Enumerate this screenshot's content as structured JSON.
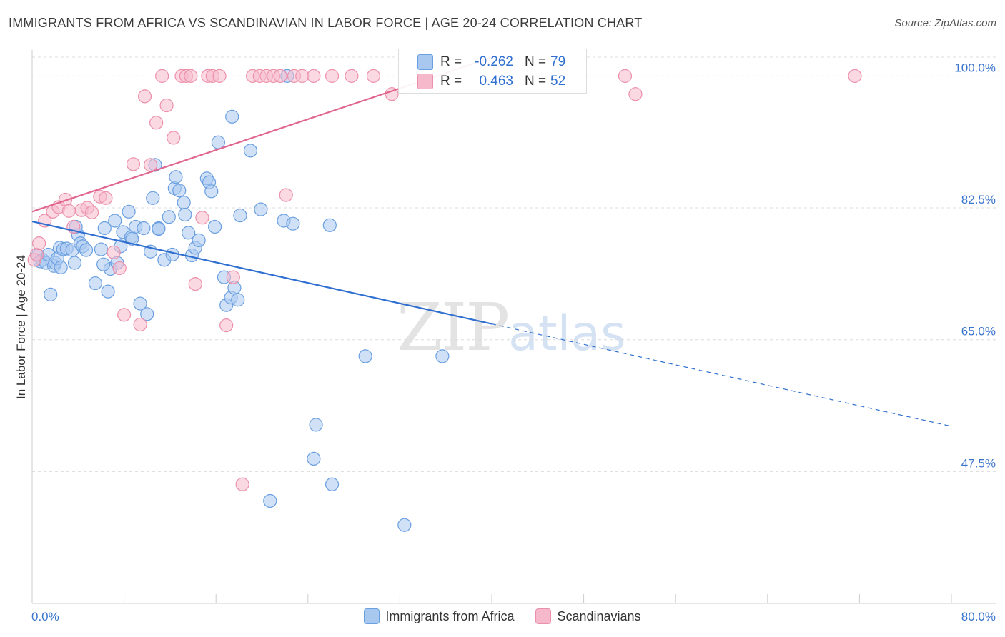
{
  "header": {
    "title": "IMMIGRANTS FROM AFRICA VS SCANDINAVIAN IN LABOR FORCE | AGE 20-24 CORRELATION CHART",
    "source": "Source: ZipAtlas.com"
  },
  "watermark": {
    "zip": "ZIP",
    "atlas": "atlas"
  },
  "correlation_box": {
    "rows": [
      {
        "r_label": "R =",
        "r_value": "-0.262",
        "n_label": "N =",
        "n_value": "79",
        "color": "#a9c8f0"
      },
      {
        "r_label": "R =",
        "r_value": "0.463",
        "n_label": "N =",
        "n_value": "52",
        "color": "#f6b9cc"
      }
    ]
  },
  "colors": {
    "blue_fill": "#a9c8f0",
    "blue_stroke": "#6a9fe0",
    "blue_line": "#2f6fcf",
    "pink_fill": "#f6b9cc",
    "pink_stroke": "#ec8fab",
    "pink_line": "#e06690",
    "tick_label": "#3a74cc",
    "grid": "#dcdcdc"
  },
  "chart_data": {
    "type": "scatter",
    "title": "IMMIGRANTS FROM AFRICA VS SCANDINAVIAN IN LABOR FORCE | AGE 20-24 CORRELATION CHART",
    "xlabel": "",
    "ylabel": "In Labor Force | Age 20-24",
    "xlim": [
      0,
      80
    ],
    "ylim": [
      30,
      102.5
    ],
    "x_tick_labels": [
      "0.0%",
      "80.0%"
    ],
    "y_ticks": [
      47.5,
      65.0,
      82.5,
      100.0
    ],
    "y_tick_labels": [
      "47.5%",
      "65.0%",
      "82.5%",
      "100.0%"
    ],
    "grid": true,
    "legend": "bottom-center",
    "series": [
      {
        "name": "Immigrants from Africa",
        "r": -0.262,
        "n": 79,
        "trend": {
          "x0": 0,
          "y0": 80.7,
          "x1": 40,
          "y1": 67.1,
          "dashed_to_x": 80,
          "dashed_to_y": 53.5
        },
        "points": [
          [
            0.5,
            76.2
          ],
          [
            0.7,
            75.4
          ],
          [
            0.9,
            75.6
          ],
          [
            1.2,
            75.2
          ],
          [
            1.4,
            76.3
          ],
          [
            1.6,
            71.0
          ],
          [
            1.9,
            74.8
          ],
          [
            2.0,
            75.2
          ],
          [
            2.2,
            75.8
          ],
          [
            2.4,
            77.2
          ],
          [
            2.5,
            74.6
          ],
          [
            2.7,
            77.0
          ],
          [
            3.0,
            77.1
          ],
          [
            3.5,
            76.9
          ],
          [
            3.7,
            75.2
          ],
          [
            4.0,
            78.9
          ],
          [
            4.2,
            77.8
          ],
          [
            4.4,
            77.4
          ],
          [
            4.7,
            76.9
          ],
          [
            5.5,
            72.5
          ],
          [
            6.0,
            77.0
          ],
          [
            6.3,
            79.8
          ],
          [
            6.6,
            71.4
          ],
          [
            6.8,
            74.4
          ],
          [
            7.2,
            80.8
          ],
          [
            7.4,
            75.2
          ],
          [
            7.7,
            77.4
          ],
          [
            7.9,
            79.3
          ],
          [
            8.4,
            82.0
          ],
          [
            8.6,
            78.6
          ],
          [
            8.7,
            78.4
          ],
          [
            9.0,
            80.0
          ],
          [
            9.4,
            69.8
          ],
          [
            9.7,
            79.8
          ],
          [
            10.0,
            68.4
          ],
          [
            10.3,
            76.7
          ],
          [
            10.5,
            83.8
          ],
          [
            10.7,
            88.2
          ],
          [
            11.0,
            79.8
          ],
          [
            11.5,
            75.6
          ],
          [
            11.9,
            81.3
          ],
          [
            12.2,
            76.3
          ],
          [
            12.4,
            85.1
          ],
          [
            12.5,
            86.6
          ],
          [
            12.8,
            84.8
          ],
          [
            13.2,
            83.2
          ],
          [
            13.3,
            81.6
          ],
          [
            13.6,
            79.2
          ],
          [
            13.9,
            76.2
          ],
          [
            14.2,
            77.2
          ],
          [
            14.5,
            78.2
          ],
          [
            15.2,
            86.4
          ],
          [
            15.4,
            85.9
          ],
          [
            15.6,
            84.7
          ],
          [
            15.9,
            80.0
          ],
          [
            16.2,
            91.2
          ],
          [
            16.7,
            73.3
          ],
          [
            16.9,
            69.6
          ],
          [
            17.3,
            70.6
          ],
          [
            17.6,
            71.9
          ],
          [
            17.4,
            94.6
          ],
          [
            17.9,
            70.3
          ],
          [
            18.1,
            81.5
          ],
          [
            19.0,
            90.1
          ],
          [
            19.9,
            82.3
          ],
          [
            20.7,
            43.6
          ],
          [
            21.9,
            80.8
          ],
          [
            22.2,
            100.0
          ],
          [
            22.7,
            80.4
          ],
          [
            24.5,
            49.2
          ],
          [
            24.7,
            53.7
          ],
          [
            25.9,
            80.2
          ],
          [
            26.1,
            45.8
          ],
          [
            29.0,
            62.8
          ],
          [
            32.4,
            40.4
          ],
          [
            35.7,
            62.8
          ],
          [
            3.8,
            80.0
          ],
          [
            6.2,
            75.0
          ],
          [
            11.0,
            79.7
          ]
        ]
      },
      {
        "name": "Scandinavians",
        "r": 0.463,
        "n": 52,
        "trend": {
          "x0": 0,
          "y0": 82.0,
          "x1": 45,
          "y1": 105.0
        },
        "points": [
          [
            0.2,
            75.6
          ],
          [
            0.4,
            76.3
          ],
          [
            0.6,
            77.8
          ],
          [
            1.1,
            80.8
          ],
          [
            1.8,
            82.0
          ],
          [
            2.3,
            82.6
          ],
          [
            2.9,
            83.6
          ],
          [
            3.2,
            82.1
          ],
          [
            3.6,
            80.0
          ],
          [
            4.3,
            82.2
          ],
          [
            4.8,
            82.5
          ],
          [
            5.2,
            81.9
          ],
          [
            5.9,
            84.0
          ],
          [
            6.4,
            83.8
          ],
          [
            7.1,
            76.6
          ],
          [
            7.6,
            74.5
          ],
          [
            8.0,
            68.3
          ],
          [
            8.8,
            88.3
          ],
          [
            9.4,
            67.0
          ],
          [
            9.8,
            97.3
          ],
          [
            10.3,
            88.2
          ],
          [
            10.8,
            93.8
          ],
          [
            11.3,
            100.0
          ],
          [
            11.7,
            96.1
          ],
          [
            12.3,
            91.8
          ],
          [
            13.0,
            100.0
          ],
          [
            13.4,
            100.0
          ],
          [
            13.8,
            100.0
          ],
          [
            14.2,
            72.4
          ],
          [
            14.8,
            81.2
          ],
          [
            15.3,
            100.0
          ],
          [
            15.7,
            100.0
          ],
          [
            16.3,
            100.0
          ],
          [
            16.9,
            66.9
          ],
          [
            17.5,
            73.3
          ],
          [
            18.3,
            45.8
          ],
          [
            19.2,
            100.0
          ],
          [
            19.8,
            100.0
          ],
          [
            20.4,
            100.0
          ],
          [
            21.0,
            100.0
          ],
          [
            21.6,
            100.0
          ],
          [
            22.1,
            84.2
          ],
          [
            22.8,
            100.0
          ],
          [
            23.5,
            100.0
          ],
          [
            24.5,
            100.0
          ],
          [
            26.1,
            100.0
          ],
          [
            27.8,
            100.0
          ],
          [
            29.7,
            100.0
          ],
          [
            31.3,
            97.6
          ],
          [
            51.6,
            100.0
          ],
          [
            52.5,
            97.6
          ],
          [
            71.6,
            100.0
          ]
        ]
      }
    ]
  },
  "legend": {
    "items": [
      {
        "label": "Immigrants from Africa",
        "color": "#a9c8f0"
      },
      {
        "label": "Scandinavians",
        "color": "#f6b9cc"
      }
    ]
  }
}
